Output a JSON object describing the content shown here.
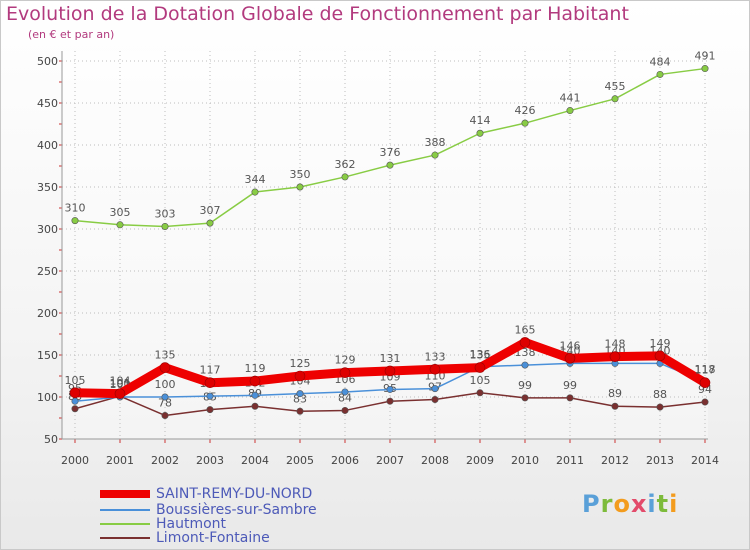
{
  "title": "Evolution de la Dotation Globale de Fonctionnement par Habitant",
  "subtitle": "(en € et par an)",
  "logo": [
    "P",
    "r",
    "o",
    "x",
    "i",
    "t",
    "i"
  ],
  "chart_data": {
    "type": "line",
    "title": "Evolution de la Dotation Globale de Fonctionnement par Habitant",
    "ylabel": "(en € et par an)",
    "xlabel": "",
    "ylim": [
      50,
      500
    ],
    "yticks": [
      50,
      100,
      150,
      200,
      250,
      300,
      350,
      400,
      450,
      500
    ],
    "categories": [
      "2000",
      "2001",
      "2002",
      "2003",
      "2004",
      "2005",
      "2006",
      "2007",
      "2008",
      "2009",
      "2010",
      "2011",
      "2012",
      "2013",
      "2014"
    ],
    "grid": true,
    "legend_position": "bottom-left",
    "series": [
      {
        "name": "Hautmont",
        "color": "#88cc44",
        "values": [
          310,
          305,
          303,
          307,
          344,
          350,
          362,
          376,
          388,
          414,
          426,
          441,
          455,
          484,
          491
        ],
        "labels": [
          "310",
          "305",
          "303",
          "307",
          "344",
          "350",
          "362",
          "376",
          "388",
          "414",
          "426",
          "441",
          "455",
          "484",
          "491"
        ]
      },
      {
        "name": "Limont-Fontaine",
        "color": "#7a3030",
        "values": [
          86,
          101,
          78,
          85,
          89,
          83,
          84,
          95,
          97,
          105,
          99,
          99,
          89,
          88,
          94
        ],
        "labels": [
          "86",
          "101",
          "78",
          "85",
          "89",
          "83",
          "84",
          "95",
          "97",
          "105",
          "99",
          "99",
          "89",
          "88",
          "94"
        ]
      },
      {
        "name": "Boussières-sur-Sambre",
        "color": "#4a90d9",
        "values": [
          95,
          100,
          100,
          101,
          102,
          104,
          106,
          109,
          110,
          136,
          138,
          140,
          140,
          140,
          118
        ],
        "labels": [
          "95",
          "100",
          "100",
          "101",
          "102",
          "104",
          "106",
          "109",
          "110",
          "136",
          "138",
          "140",
          "140",
          "140",
          "118"
        ]
      },
      {
        "name": "SAINT-REMY-DU-NORD",
        "color": "#ee0000",
        "values": [
          105,
          104,
          135,
          117,
          119,
          125,
          129,
          131,
          133,
          135,
          165,
          146,
          148,
          149,
          117
        ],
        "labels": [
          "105",
          "104",
          "135",
          "117",
          "119",
          "125",
          "129",
          "131",
          "133",
          "135",
          "165",
          "146",
          "148",
          "149",
          "117"
        ]
      }
    ],
    "legend": [
      "SAINT-REMY-DU-NORD",
      "Boussières-sur-Sambre",
      "Hautmont",
      "Limont-Fontaine"
    ]
  }
}
